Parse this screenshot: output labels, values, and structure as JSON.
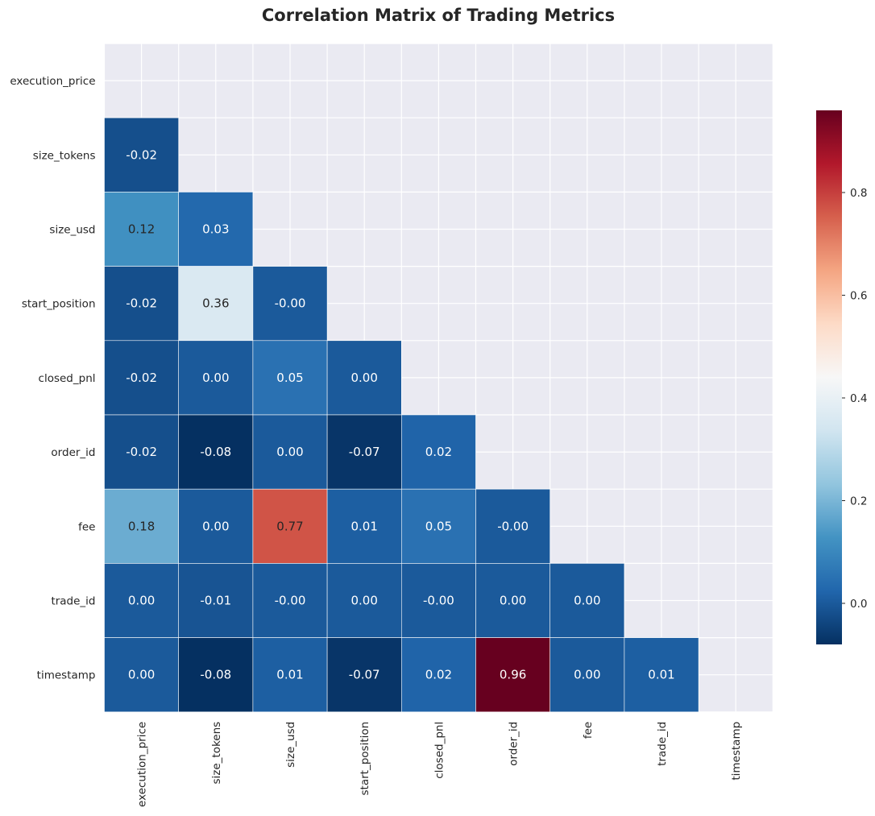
{
  "chart_data": {
    "type": "heatmap",
    "title": "Correlation Matrix of Trading Metrics",
    "labels": [
      "execution_price",
      "size_tokens",
      "size_usd",
      "start_position",
      "closed_pnl",
      "order_id",
      "fee",
      "trade_id",
      "timestamp"
    ],
    "mask": "upper triangle including diagonal",
    "rows": [
      {
        "label": "size_tokens",
        "values": [
          -0.02
        ]
      },
      {
        "label": "size_usd",
        "values": [
          0.12,
          0.03
        ]
      },
      {
        "label": "start_position",
        "values": [
          -0.02,
          0.36,
          -0.0
        ]
      },
      {
        "label": "closed_pnl",
        "values": [
          -0.02,
          0.0,
          0.05,
          0.0
        ]
      },
      {
        "label": "order_id",
        "values": [
          -0.02,
          -0.08,
          0.0,
          -0.07,
          0.02
        ]
      },
      {
        "label": "fee",
        "values": [
          0.18,
          0.0,
          0.77,
          0.01,
          0.05,
          -0.0
        ]
      },
      {
        "label": "trade_id",
        "values": [
          0.0,
          -0.01,
          -0.0,
          0.0,
          -0.0,
          0.0,
          0.0
        ]
      },
      {
        "label": "timestamp",
        "values": [
          0.0,
          -0.08,
          0.01,
          -0.07,
          0.02,
          0.96,
          0.0,
          0.01
        ]
      }
    ],
    "colormap": "RdBu_r",
    "color_range": [
      -0.08,
      0.96
    ],
    "colorbar": {
      "ticks": [
        "0.0",
        "0.2",
        "0.4",
        "0.6",
        "0.8"
      ],
      "tick_values": [
        0.0,
        0.2,
        0.4,
        0.6,
        0.8
      ]
    },
    "colors": {
      "masked_background": "#eaeaf2",
      "grid_line": "#ffffff",
      "text_dark": "#262626",
      "text_light": "#ffffff"
    }
  }
}
